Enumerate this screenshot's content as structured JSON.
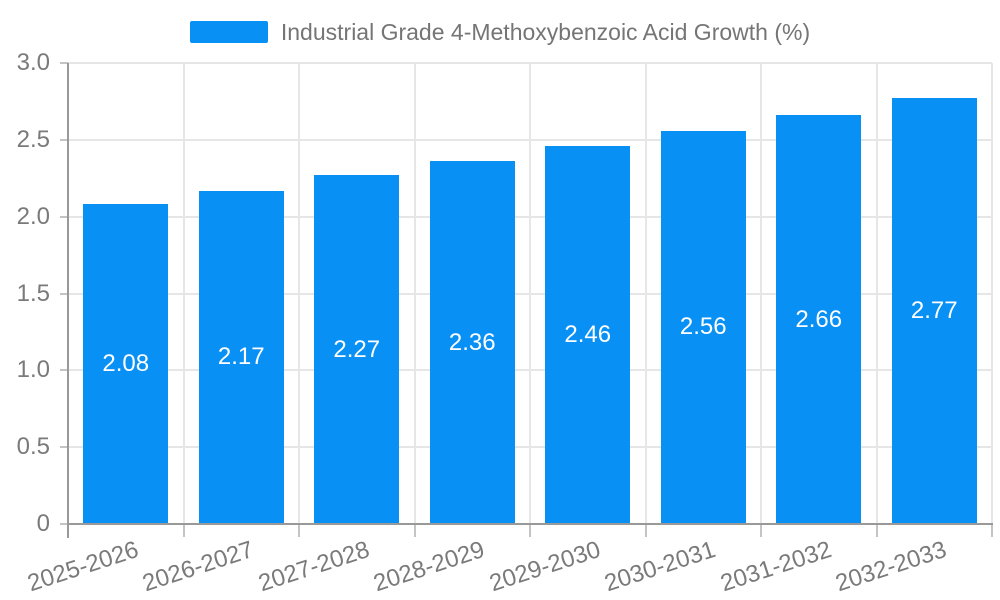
{
  "chart_data": {
    "type": "bar",
    "title": "Industrial Grade 4-Methoxybenzoic Acid Growth (%)",
    "legend": {
      "position": "top",
      "entries": [
        "Industrial Grade 4-Methoxybenzoic Acid Growth (%)"
      ]
    },
    "categories": [
      "2025-2026",
      "2026-2027",
      "2027-2028",
      "2028-2029",
      "2029-2030",
      "2030-2031",
      "2031-2032",
      "2032-2033"
    ],
    "values": [
      2.08,
      2.17,
      2.27,
      2.36,
      2.46,
      2.56,
      2.66,
      2.77
    ],
    "value_labels": [
      "2.08",
      "2.17",
      "2.27",
      "2.36",
      "2.46",
      "2.56",
      "2.66",
      "2.77"
    ],
    "xlabel": "",
    "ylabel": "",
    "ylim": [
      0,
      3
    ],
    "yticks": [
      0,
      0.5,
      1,
      1.5,
      2,
      2.5,
      3
    ],
    "ytick_labels": [
      "0",
      "0.5",
      "1.0",
      "1.5",
      "2.0",
      "2.5",
      "3.0"
    ],
    "grid": true,
    "value_label_position": "inside-center",
    "colors": {
      "bar": "#0990f5",
      "value_label": "#ffffff",
      "grid_line": "#e6e6e6",
      "axis_line": "#999999",
      "tick": "#c4c4c4",
      "axis_label": "#7a7a7a",
      "legend_text": "#757575",
      "background": "#ffffff"
    }
  }
}
